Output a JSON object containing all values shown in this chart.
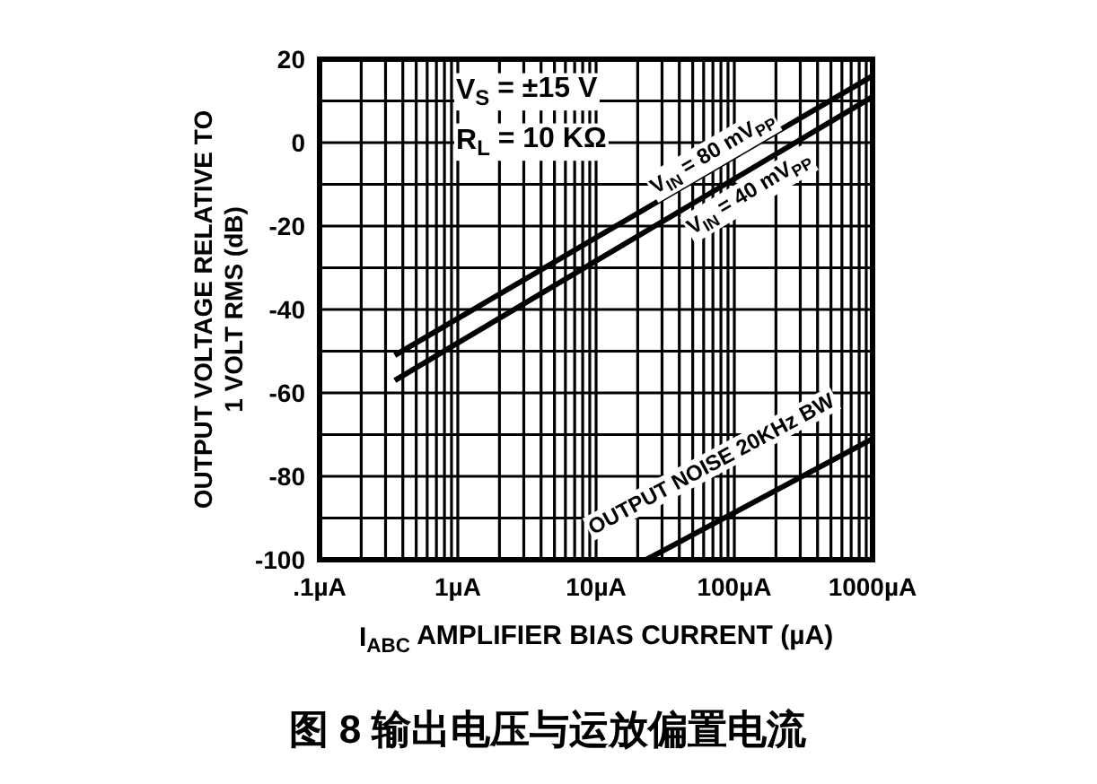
{
  "chart_data": {
    "type": "line",
    "title": "图 8 输出电压与运放偏置电流",
    "xlabel": "I$_{ABC}$ AMPLIFIER BIAS CURRENT (µA)",
    "ylabel": "OUTPUT VOLTAGE RELATIVE TO\n1 VOLT RMS (dB)",
    "annotations": [
      "V$_{S}$ = ±15 V",
      "R$_{L}$ = 10 KΩ"
    ],
    "log": "x",
    "grid": true,
    "legend": false,
    "marker": "none",
    "line_style": "solid",
    "xlim": [
      0.1,
      1000
    ],
    "ylim": [
      -100,
      20
    ],
    "xticks": [
      {
        "value": 0.1,
        "label": ".1µA"
      },
      {
        "value": 0.2,
        "label": null
      },
      {
        "value": 0.3,
        "label": null
      },
      {
        "value": 0.4,
        "label": null
      },
      {
        "value": 0.5,
        "label": null
      },
      {
        "value": 0.6,
        "label": null
      },
      {
        "value": 0.7,
        "label": null
      },
      {
        "value": 0.8,
        "label": null
      },
      {
        "value": 0.9,
        "label": null
      },
      {
        "value": 1,
        "label": "1µA"
      },
      {
        "value": 2,
        "label": null
      },
      {
        "value": 3,
        "label": null
      },
      {
        "value": 4,
        "label": null
      },
      {
        "value": 5,
        "label": null
      },
      {
        "value": 6,
        "label": null
      },
      {
        "value": 7,
        "label": null
      },
      {
        "value": 8,
        "label": null
      },
      {
        "value": 9,
        "label": null
      },
      {
        "value": 10,
        "label": "10µA"
      },
      {
        "value": 20,
        "label": null
      },
      {
        "value": 30,
        "label": null
      },
      {
        "value": 40,
        "label": null
      },
      {
        "value": 50,
        "label": null
      },
      {
        "value": 60,
        "label": null
      },
      {
        "value": 70,
        "label": null
      },
      {
        "value": 80,
        "label": null
      },
      {
        "value": 90,
        "label": null
      },
      {
        "value": 100,
        "label": "100µA"
      },
      {
        "value": 200,
        "label": null
      },
      {
        "value": 300,
        "label": null
      },
      {
        "value": 400,
        "label": null
      },
      {
        "value": 500,
        "label": null
      },
      {
        "value": 600,
        "label": null
      },
      {
        "value": 700,
        "label": null
      },
      {
        "value": 800,
        "label": null
      },
      {
        "value": 900,
        "label": null
      },
      {
        "value": 1000,
        "label": "1000µA"
      }
    ],
    "yticks": [
      -100,
      {
        "value": -90,
        "label": null
      },
      -80,
      {
        "value": -70,
        "label": null
      },
      -60,
      {
        "value": -50,
        "label": null
      },
      -40,
      {
        "value": -30,
        "label": null
      },
      -20,
      {
        "value": -10,
        "label": null
      },
      0,
      {
        "value": 10,
        "label": null
      },
      20
    ],
    "series": [
      {
        "name": "V$_{IN}$ = 80 mV$_{PP}$",
        "color": "#000000",
        "x": [
          0.35,
          1000
        ],
        "values": [
          -51,
          16
        ]
      },
      {
        "name": "V$_{IN}$ = 40 mV$_{PP}$",
        "color": "#000000",
        "x": [
          0.35,
          1000
        ],
        "values": [
          -57,
          11
        ]
      },
      {
        "name": "OUTPUT NOISE 20KHz BW",
        "color": "#000000",
        "x": [
          23,
          1000
        ],
        "values": [
          -100,
          -71
        ]
      }
    ]
  }
}
